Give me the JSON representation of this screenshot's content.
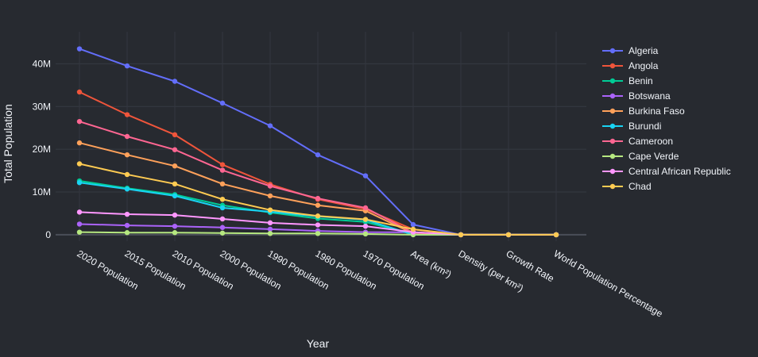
{
  "chart_data": {
    "type": "line",
    "title": "",
    "xlabel": "Year",
    "ylabel": "Total Population",
    "categories": [
      "2020 Population",
      "2015 Population",
      "2010 Population",
      "2000 Population",
      "1990 Population",
      "1980 Population",
      "1970 Population",
      "Area (km²)",
      "Density (per km²)",
      "Growth Rate",
      "World Population Percentage"
    ],
    "y_ticks": [
      {
        "value": 0,
        "label": "0"
      },
      {
        "value": 10000000,
        "label": "10M"
      },
      {
        "value": 20000000,
        "label": "20M"
      },
      {
        "value": 30000000,
        "label": "30M"
      },
      {
        "value": 40000000,
        "label": "40M"
      }
    ],
    "ylim": [
      -1500000,
      47500000
    ],
    "grid": true,
    "legend_position": "right",
    "series": [
      {
        "name": "Algeria",
        "color": "#636efa",
        "values": [
          43500000,
          39500000,
          35900000,
          30800000,
          25500000,
          18700000,
          13800000,
          2381741,
          18,
          1.02,
          0.56
        ]
      },
      {
        "name": "Angola",
        "color": "#ef553b",
        "values": [
          33400000,
          28100000,
          23400000,
          16400000,
          11800000,
          8300000,
          6000000,
          1246700,
          27,
          1.03,
          0.45
        ]
      },
      {
        "name": "Benin",
        "color": "#00cc96",
        "values": [
          12600000,
          10900000,
          9400000,
          6900000,
          5200000,
          3800000,
          3000000,
          112622,
          118,
          1.03,
          0.17
        ]
      },
      {
        "name": "Botswana",
        "color": "#ab63fa",
        "values": [
          2500000,
          2200000,
          2000000,
          1700000,
          1300000,
          900000,
          600000,
          582000,
          4,
          1.02,
          0.03
        ]
      },
      {
        "name": "Burkina Faso",
        "color": "#ffa15a",
        "values": [
          21500000,
          18700000,
          16100000,
          11900000,
          9100000,
          6900000,
          5600000,
          272967,
          84,
          1.03,
          0.28
        ]
      },
      {
        "name": "Burundi",
        "color": "#19d3f3",
        "values": [
          12200000,
          10700000,
          9100000,
          6300000,
          5400000,
          4300000,
          3500000,
          27834,
          463,
          1.03,
          0.16
        ]
      },
      {
        "name": "Cameroon",
        "color": "#ff6692",
        "values": [
          26500000,
          23000000,
          19900000,
          15100000,
          11400000,
          8500000,
          6300000,
          475442,
          58,
          1.03,
          0.35
        ]
      },
      {
        "name": "Cape Verde",
        "color": "#b6e880",
        "values": [
          600000,
          500000,
          500000,
          400000,
          300000,
          300000,
          200000,
          4033,
          148,
          1.01,
          0.01
        ]
      },
      {
        "name": "Central African Republic",
        "color": "#ff97ff",
        "values": [
          5300000,
          4800000,
          4600000,
          3700000,
          2800000,
          2300000,
          2000000,
          622984,
          9,
          1.02,
          0.07
        ]
      },
      {
        "name": "Chad",
        "color": "#fecb52",
        "values": [
          16600000,
          14100000,
          11900000,
          8300000,
          5800000,
          4400000,
          3600000,
          1284000,
          14,
          1.03,
          0.22
        ]
      }
    ]
  }
}
